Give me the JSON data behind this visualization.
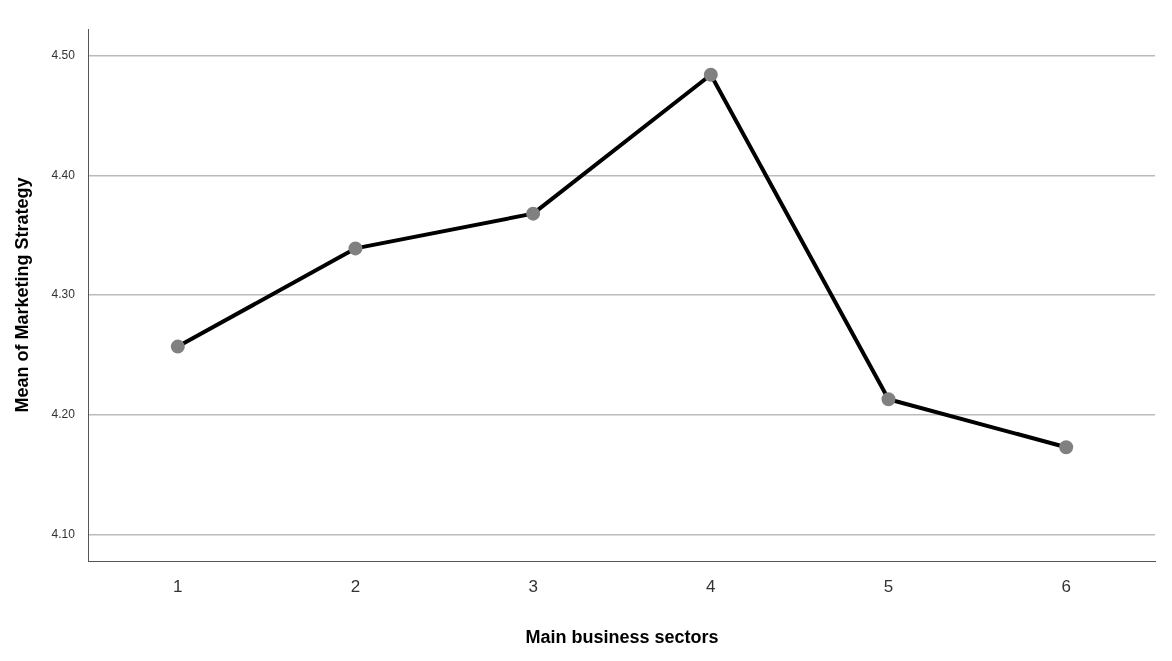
{
  "chart_data": {
    "type": "line",
    "xlabel": "Main business sectors",
    "ylabel": "Mean of Marketing Strategy",
    "categories": [
      "1",
      "2",
      "3",
      "4",
      "5",
      "6"
    ],
    "series": [
      {
        "color": "#000000",
        "values": [
          4.257,
          4.339,
          4.368,
          4.484,
          4.213,
          4.173
        ]
      }
    ],
    "ylim": [
      4.078,
      4.522
    ],
    "yticks": [
      {
        "value": 4.1,
        "label": "4.10"
      },
      {
        "value": 4.2,
        "label": "4.20"
      },
      {
        "value": 4.3,
        "label": "4.30"
      },
      {
        "value": 4.4,
        "label": "4.40"
      },
      {
        "value": 4.5,
        "label": "4.50"
      }
    ],
    "grid": "y",
    "marker": "circle",
    "line_style": "solid",
    "legend": false
  }
}
